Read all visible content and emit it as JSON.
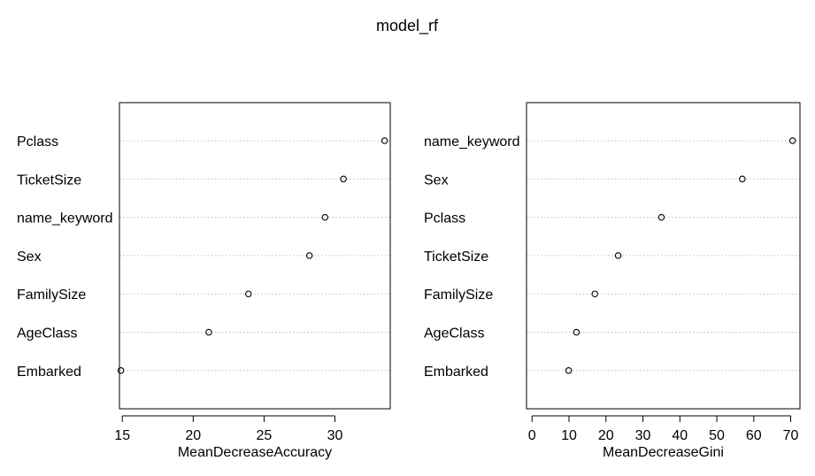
{
  "title": "model_rf",
  "chart_data": [
    {
      "type": "scatter",
      "title": "",
      "xlabel": "MeanDecreaseAccuracy",
      "ylabel": "",
      "xlim": [
        14.8,
        33.9
      ],
      "xticks": [
        15,
        20,
        25,
        30
      ],
      "grid": "dotted horizontal",
      "categories": [
        "Pclass",
        "TicketSize",
        "name_keyword",
        "Sex",
        "FamilySize",
        "AgeClass",
        "Embarked"
      ],
      "values": [
        33.5,
        30.6,
        29.3,
        28.2,
        23.9,
        21.1,
        14.9
      ]
    },
    {
      "type": "scatter",
      "title": "",
      "xlabel": "MeanDecreaseGini",
      "ylabel": "",
      "xlim": [
        -1.5,
        72.5
      ],
      "xticks": [
        0,
        10,
        20,
        30,
        40,
        50,
        60,
        70
      ],
      "grid": "dotted horizontal",
      "categories": [
        "name_keyword",
        "Sex",
        "Pclass",
        "TicketSize",
        "FamilySize",
        "AgeClass",
        "Embarked"
      ],
      "values": [
        70.5,
        56.9,
        35.0,
        23.3,
        17.0,
        12.0,
        9.9
      ]
    }
  ]
}
